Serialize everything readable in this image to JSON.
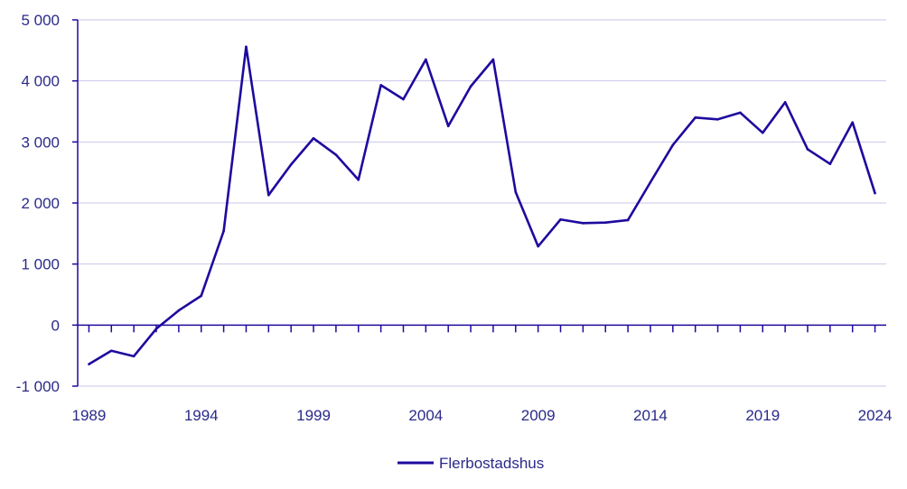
{
  "chart_data": {
    "type": "line",
    "title": "",
    "xlabel": "",
    "ylabel": "",
    "ylim": [
      -1000,
      5000
    ],
    "yticks": [
      -1000,
      0,
      1000,
      2000,
      3000,
      4000,
      5000
    ],
    "ytick_labels": [
      "-1 000",
      "0",
      "1 000",
      "2 000",
      "3 000",
      "4 000",
      "5 000"
    ],
    "xticks": [
      1989,
      1994,
      1999,
      2004,
      2009,
      2014,
      2019,
      2024
    ],
    "xtick_labels": [
      "1989",
      "1994",
      "1999",
      "2004",
      "2009",
      "2014",
      "2019",
      "2024"
    ],
    "grid": true,
    "legend_position": "bottom-center",
    "colors": {
      "line": "#1e0a9e",
      "grid": "#c9c6e8",
      "axis": "#1e0a9e",
      "text": "#2a2a8a"
    },
    "series": [
      {
        "name": "Flerbostadshus",
        "x": [
          1989,
          1990,
          1991,
          1992,
          1993,
          1994,
          1995,
          1996,
          1997,
          1998,
          1999,
          2000,
          2001,
          2002,
          2003,
          2004,
          2005,
          2006,
          2007,
          2008,
          2009,
          2010,
          2011,
          2012,
          2013,
          2014,
          2015,
          2016,
          2017,
          2018,
          2019,
          2020,
          2021,
          2022,
          2023,
          2024
        ],
        "values": [
          -640,
          -420,
          -510,
          -60,
          240,
          480,
          1540,
          4560,
          2130,
          2630,
          3060,
          2790,
          2380,
          3930,
          3700,
          4350,
          3260,
          3910,
          4350,
          2180,
          1290,
          1730,
          1670,
          1680,
          1720,
          2340,
          2950,
          3400,
          3370,
          3480,
          3150,
          3650,
          2880,
          2640,
          3320,
          2160
        ]
      }
    ]
  }
}
